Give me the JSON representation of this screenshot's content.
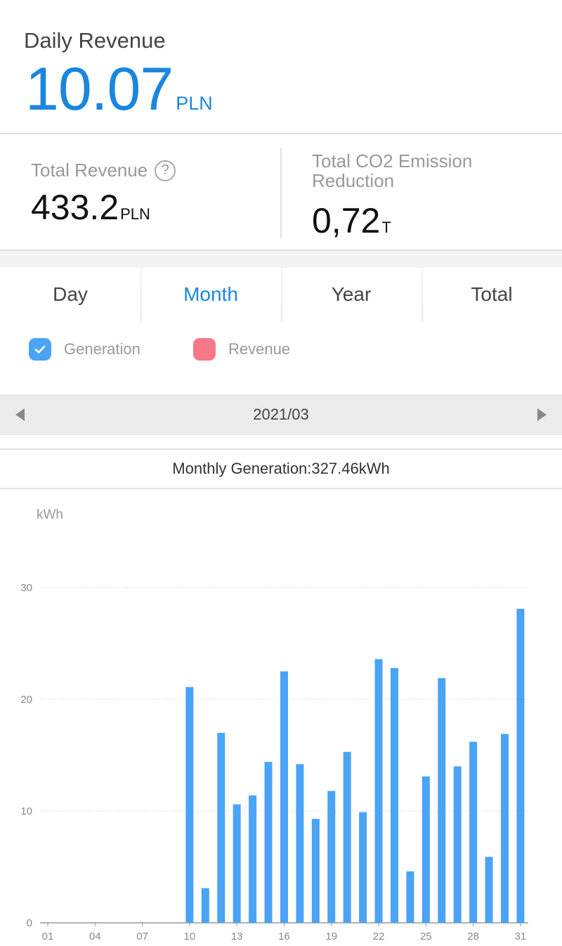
{
  "header": {
    "title": "Daily Revenue",
    "value": "10.07",
    "unit": "PLN"
  },
  "stats": {
    "total_revenue": {
      "label": "Total Revenue",
      "value": "433.2",
      "unit": "PLN",
      "icon": "help-icon"
    },
    "co2": {
      "label_line1": "Total CO2 Emission",
      "label_line2": "Reduction",
      "value": "0,72",
      "unit": "T"
    }
  },
  "tabs": [
    {
      "label": "Day",
      "active": false
    },
    {
      "label": "Month",
      "active": true
    },
    {
      "label": "Year",
      "active": false
    },
    {
      "label": "Total",
      "active": false
    }
  ],
  "legend": {
    "generation": {
      "label": "Generation",
      "checked": true,
      "color": "#4aa3f5"
    },
    "revenue": {
      "label": "Revenue",
      "checked": false,
      "color": "#f77888"
    }
  },
  "date_nav": {
    "date": "2021/03",
    "prev_icon": "triangle-left-icon",
    "next_icon": "triangle-right-icon"
  },
  "summary": {
    "text": "Monthly Generation:327.46kWh"
  },
  "chart_data": {
    "type": "bar",
    "ylabel": "kWh",
    "ylim": [
      0,
      30
    ],
    "yticks": [
      0,
      10,
      20,
      30
    ],
    "grid": true,
    "x_tick_labels": [
      "01",
      "04",
      "07",
      "10",
      "13",
      "16",
      "19",
      "22",
      "25",
      "28",
      "31"
    ],
    "categories": [
      "01",
      "02",
      "03",
      "04",
      "05",
      "06",
      "07",
      "08",
      "09",
      "10",
      "11",
      "12",
      "13",
      "14",
      "15",
      "16",
      "17",
      "18",
      "19",
      "20",
      "21",
      "22",
      "23",
      "24",
      "25",
      "26",
      "27",
      "28",
      "29",
      "30",
      "31"
    ],
    "series": [
      {
        "values": [
          0,
          0,
          0,
          0,
          0,
          0,
          0,
          0,
          0,
          21.1,
          3.1,
          17.0,
          10.6,
          11.4,
          14.4,
          22.5,
          14.2,
          9.3,
          11.8,
          15.3,
          9.9,
          23.6,
          22.8,
          4.6,
          13.1,
          21.9,
          14.0,
          16.2,
          5.9,
          16.9,
          28.1
        ],
        "color": "#4aa3f5"
      }
    ]
  }
}
